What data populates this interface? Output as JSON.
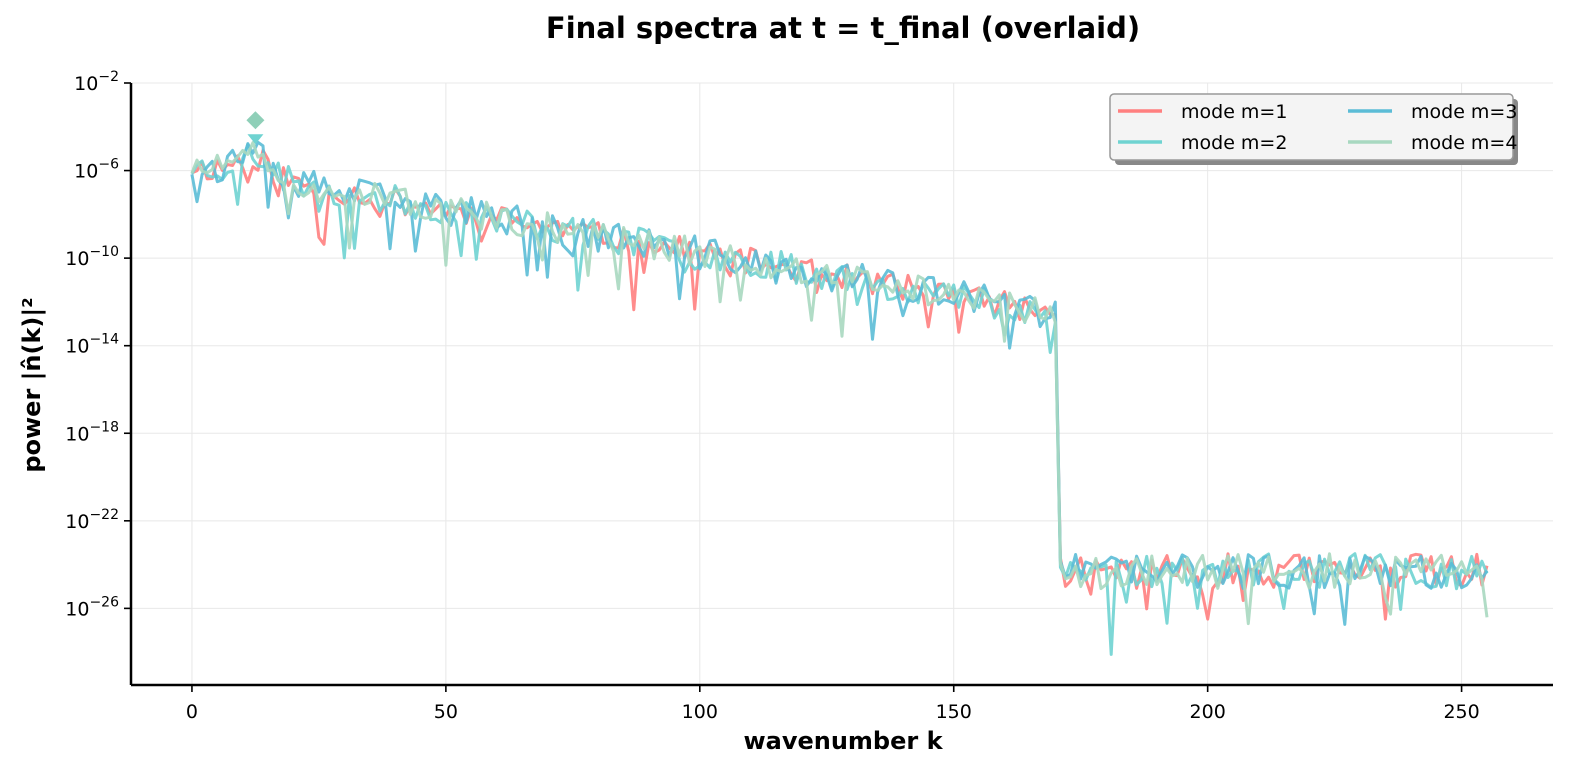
{
  "chart_data": {
    "type": "line",
    "title": "Final spectra at t = t_final (overlaid)",
    "xlabel": "wavenumber k",
    "ylabel": "power |n̂(k)|²",
    "xlim": [
      -12,
      268
    ],
    "ylim_log10": [
      -29.5,
      -2
    ],
    "yscale": "log",
    "grid": true,
    "legend_placement": "top-right",
    "legend_columns": 2,
    "x_ticks": [
      0,
      50,
      100,
      150,
      200,
      250
    ],
    "x_tick_labels": [
      "0",
      "50",
      "100",
      "150",
      "200",
      "250"
    ],
    "y_ticks": [
      {
        "base": "10",
        "exp": "−2",
        "value_log10": -2
      },
      {
        "base": "10",
        "exp": "−6",
        "value_log10": -6
      },
      {
        "base": "10",
        "exp": "−10",
        "value_log10": -10
      },
      {
        "base": "10",
        "exp": "−14",
        "value_log10": -14
      },
      {
        "base": "10",
        "exp": "−18",
        "value_log10": -18
      },
      {
        "base": "10",
        "exp": "−22",
        "value_log10": -22
      },
      {
        "base": "10",
        "exp": "−26",
        "value_log10": -26
      }
    ],
    "series": [
      {
        "name": "mode m=1",
        "color": "#ff7f7f",
        "seed": 11,
        "peak_k": 12,
        "noise_amp": 0.6
      },
      {
        "name": "mode m=2",
        "color": "#6fd3d1",
        "seed": 23,
        "peak_k": 12,
        "noise_amp": 0.7
      },
      {
        "name": "mode m=3",
        "color": "#5bbcd6",
        "seed": 37,
        "peak_k": 12,
        "noise_amp": 0.75
      },
      {
        "name": "mode m=4",
        "color": "#a8d8c0",
        "seed": 51,
        "peak_k": 12,
        "noise_amp": 0.65
      }
    ],
    "shape": {
      "k_max": 255,
      "cutoff_k": 170,
      "low_k_log10_at_0": -5.8,
      "log10_slope_per_k": -0.0395,
      "high_k_floor_log10": -24.3,
      "peak_marker_log10": -3.7
    }
  }
}
